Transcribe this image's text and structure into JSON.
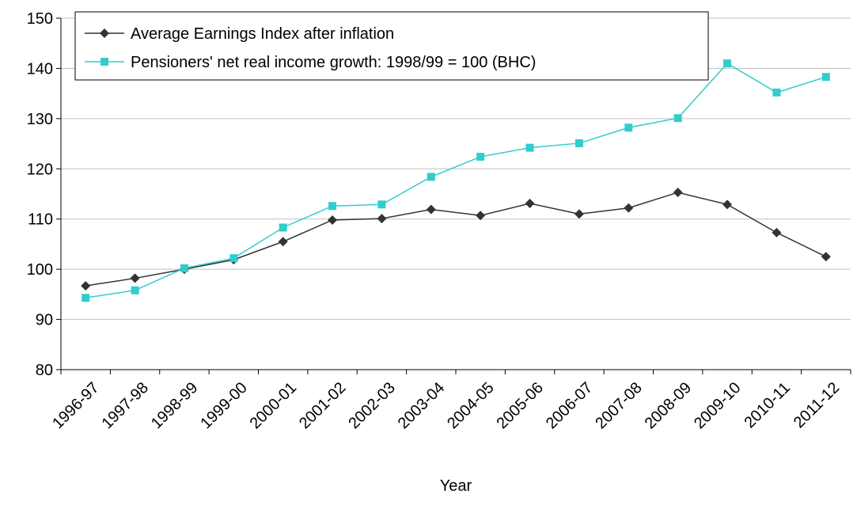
{
  "chart_data": {
    "type": "line",
    "x_label": "Year",
    "categories": [
      "1996-97",
      "1997-98",
      "1998-99",
      "1999-00",
      "2000-01",
      "2001-02",
      "2002-03",
      "2003-04",
      "2004-05",
      "2005-06",
      "2006-07",
      "2007-08",
      "2008-09",
      "2009-10",
      "2010-11",
      "2011-12"
    ],
    "series": [
      {
        "name": "Average Earnings Index after inflation",
        "color": "#333333",
        "marker": "diamond",
        "values": [
          96.7,
          98.2,
          100,
          101.9,
          105.5,
          109.8,
          110.1,
          111.9,
          110.7,
          113.1,
          111.0,
          112.2,
          115.3,
          112.9,
          107.3,
          102.5
        ]
      },
      {
        "name": "Pensioners' net real income growth: 1998/99 = 100 (BHC)",
        "color": "#33cccc",
        "marker": "square",
        "values": [
          94.3,
          95.8,
          100.2,
          102.2,
          108.3,
          112.6,
          112.9,
          118.4,
          122.4,
          124.2,
          125.1,
          128.2,
          130.1,
          141.0,
          135.2,
          138.3
        ]
      }
    ],
    "ylim": [
      80,
      150
    ],
    "yticks": [
      80,
      90,
      100,
      110,
      120,
      130,
      140,
      150
    ],
    "grid": true,
    "legend": "top-left"
  }
}
